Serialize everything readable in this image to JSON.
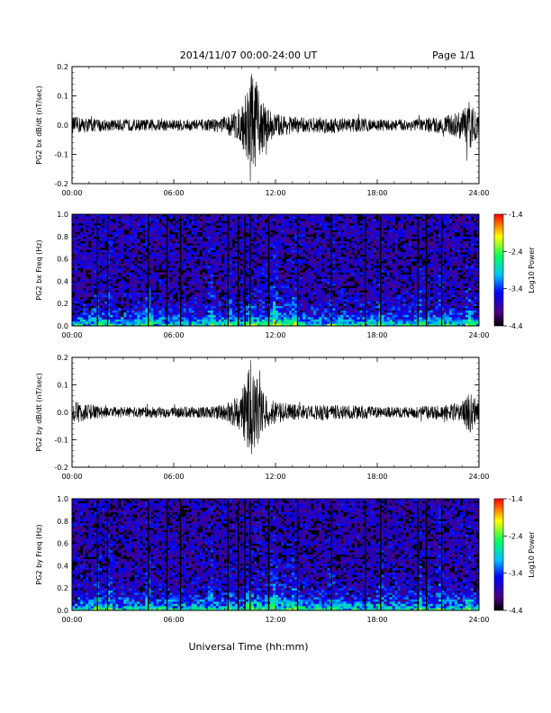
{
  "header": {
    "title": "2014/11/07  00:00-24:00 UT",
    "page": "Page 1/1"
  },
  "footer": {
    "xlabel": "Universal Time (hh:mm)"
  },
  "colors": {
    "trace": "#000000",
    "colormap": [
      "#000000",
      "#4b0082",
      "#0000ff",
      "#00c0ff",
      "#00ff60",
      "#ffff00",
      "#ff0000"
    ]
  },
  "chart_data": [
    {
      "type": "line",
      "ylabel": "PG2 bx dB/dt (nT/sec)",
      "xlim": [
        "00:00",
        "24:00"
      ],
      "ylim": [
        -0.2,
        0.2
      ],
      "x_ticks": [
        "00:00",
        "06:00",
        "12:00",
        "18:00",
        "24:00"
      ],
      "y_ticks": [
        "-0.2",
        "-0.1",
        "0.0",
        "0.1",
        "0.2"
      ],
      "series": [
        {
          "x_hours": [
            0,
            1,
            2,
            3,
            4,
            5,
            6,
            7,
            8,
            9,
            10,
            10.5,
            11,
            11.5,
            12,
            13,
            14,
            15,
            16,
            17,
            18,
            19,
            20,
            21,
            22,
            23,
            23.5,
            24
          ],
          "envelope": [
            0.03,
            0.025,
            0.02,
            0.02,
            0.02,
            0.02,
            0.02,
            0.02,
            0.02,
            0.03,
            0.06,
            0.2,
            0.12,
            0.06,
            0.04,
            0.03,
            0.025,
            0.03,
            0.025,
            0.025,
            0.02,
            0.02,
            0.02,
            0.025,
            0.03,
            0.05,
            0.09,
            0.03
          ]
        }
      ]
    },
    {
      "type": "heatmap",
      "ylabel": "PG2 bx Freq (Hz)",
      "xlim": [
        "00:00",
        "24:00"
      ],
      "ylim": [
        0.0,
        1.0
      ],
      "x_ticks": [
        "00:00",
        "06:00",
        "12:00",
        "18:00",
        "24:00"
      ],
      "y_ticks": [
        "0.0",
        "0.2",
        "0.4",
        "0.6",
        "0.8",
        "1.0"
      ],
      "colorbar": {
        "label": "Log10 Power",
        "range": [
          -4.4,
          -1.4
        ],
        "ticks": [
          "-1.4",
          "-2.4",
          "-3.4",
          "-4.4"
        ]
      },
      "bursts_hours": [
        1.5,
        2.2,
        4.5,
        8.2,
        9.3,
        10.5,
        11.9,
        13.1,
        15.3,
        18.2,
        20.5,
        21.7,
        23.4
      ],
      "enhanced_band_hours": [
        10.0,
        14.0
      ],
      "data_gaps_hours": [
        1.5,
        2.1,
        4.5,
        5.6,
        6.4,
        9.2,
        9.8,
        10.2,
        10.5,
        11.6,
        13.3,
        15.3,
        17.3,
        18.2,
        20.4,
        20.9,
        21.8
      ]
    },
    {
      "type": "line",
      "ylabel": "PG2 by dB/dt (nT/sec)",
      "xlim": [
        "00:00",
        "24:00"
      ],
      "ylim": [
        -0.2,
        0.2
      ],
      "x_ticks": [
        "00:00",
        "06:00",
        "12:00",
        "18:00",
        "24:00"
      ],
      "y_ticks": [
        "-0.2",
        "-0.1",
        "0.0",
        "0.1",
        "0.2"
      ],
      "series": [
        {
          "x_hours": [
            0,
            1,
            2,
            3,
            4,
            5,
            6,
            7,
            8,
            9,
            10,
            10.5,
            11,
            11.5,
            12,
            13,
            14,
            15,
            16,
            17,
            18,
            19,
            20,
            21,
            22,
            23,
            23.5,
            24
          ],
          "envelope": [
            0.04,
            0.03,
            0.02,
            0.02,
            0.02,
            0.02,
            0.02,
            0.02,
            0.02,
            0.03,
            0.07,
            0.2,
            0.11,
            0.06,
            0.04,
            0.03,
            0.025,
            0.03,
            0.025,
            0.025,
            0.02,
            0.02,
            0.02,
            0.025,
            0.025,
            0.04,
            0.08,
            0.03
          ]
        }
      ]
    },
    {
      "type": "heatmap",
      "ylabel": "PG2 by Freq (Hz)",
      "xlim": [
        "00:00",
        "24:00"
      ],
      "ylim": [
        0.0,
        1.0
      ],
      "x_ticks": [
        "00:00",
        "06:00",
        "12:00",
        "18:00",
        "24:00"
      ],
      "y_ticks": [
        "0.0",
        "0.2",
        "0.4",
        "0.6",
        "0.8",
        "1.0"
      ],
      "colorbar": {
        "label": "Log10 Power",
        "range": [
          -4.4,
          -1.4
        ],
        "ticks": [
          "-1.4",
          "-2.4",
          "-3.4",
          "-4.4"
        ]
      },
      "bursts_hours": [
        1.5,
        2.2,
        4.5,
        8.2,
        9.3,
        10.5,
        11.9,
        13.1,
        15.3,
        18.2,
        20.5,
        21.7,
        23.4
      ],
      "enhanced_band_hours": [
        10.0,
        14.0
      ],
      "data_gaps_hours": [
        1.5,
        2.1,
        4.5,
        5.6,
        6.4,
        9.2,
        9.8,
        10.2,
        10.5,
        11.6,
        13.3,
        15.3,
        17.3,
        18.2,
        20.4,
        20.9,
        21.8
      ]
    }
  ]
}
